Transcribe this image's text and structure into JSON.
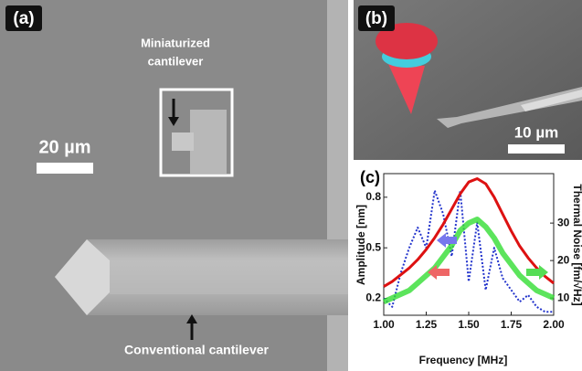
{
  "panel_a": {
    "label": "(a)",
    "miniaturized": [
      "Miniaturized",
      "cantilever"
    ],
    "scale_bar": "20 µm",
    "conventional": "Conventional cantilever"
  },
  "panel_b": {
    "label": "(b)",
    "scale_bar": "10 µm"
  },
  "chart_data": {
    "type": "line",
    "label": "(c)",
    "xlabel": "Frequency [MHz]",
    "ylabel": "Amplitude [nm]",
    "y2label": "Thermal Noise [fm/√Hz]",
    "x": [
      1.0,
      1.05,
      1.1,
      1.15,
      1.2,
      1.25,
      1.3,
      1.35,
      1.4,
      1.45,
      1.5,
      1.55,
      1.6,
      1.65,
      1.7,
      1.75,
      1.8,
      1.85,
      1.9,
      1.95,
      2.0
    ],
    "xlim": [
      1.0,
      2.0
    ],
    "xticks": [
      {
        "value": 1.0,
        "label": "1.00"
      },
      {
        "value": 1.25,
        "label": "1.25"
      },
      {
        "value": 1.5,
        "label": "1.50"
      },
      {
        "value": 1.75,
        "label": "1.75"
      },
      {
        "value": 2.0,
        "label": "2.00"
      }
    ],
    "ylim": [
      0.1,
      0.94
    ],
    "yticks": [
      0.2,
      0.5,
      0.8
    ],
    "y2lim": [
      5.4,
      43.2
    ],
    "y2ticks": [
      10,
      20,
      30
    ],
    "series": [
      {
        "color": "#2233cc",
        "dotted": true,
        "values": [
          0.2,
          0.15,
          0.35,
          0.5,
          0.62,
          0.5,
          0.84,
          0.7,
          0.45,
          0.84,
          0.3,
          0.65,
          0.25,
          0.5,
          0.32,
          0.25,
          0.18,
          0.22,
          0.15,
          0.12,
          0.12
        ]
      },
      {
        "color": "#33dd33",
        "axis": "y2",
        "values": [
          9,
          10,
          11,
          12,
          14,
          16,
          18,
          21,
          24,
          28,
          30,
          31,
          29,
          26,
          22,
          19,
          16,
          14,
          12,
          11,
          10
        ]
      },
      {
        "color": "#dd1111",
        "values": [
          0.27,
          0.3,
          0.34,
          0.38,
          0.43,
          0.49,
          0.56,
          0.64,
          0.73,
          0.82,
          0.89,
          0.91,
          0.88,
          0.8,
          0.7,
          0.6,
          0.51,
          0.44,
          0.38,
          0.33,
          0.29
        ]
      }
    ]
  }
}
